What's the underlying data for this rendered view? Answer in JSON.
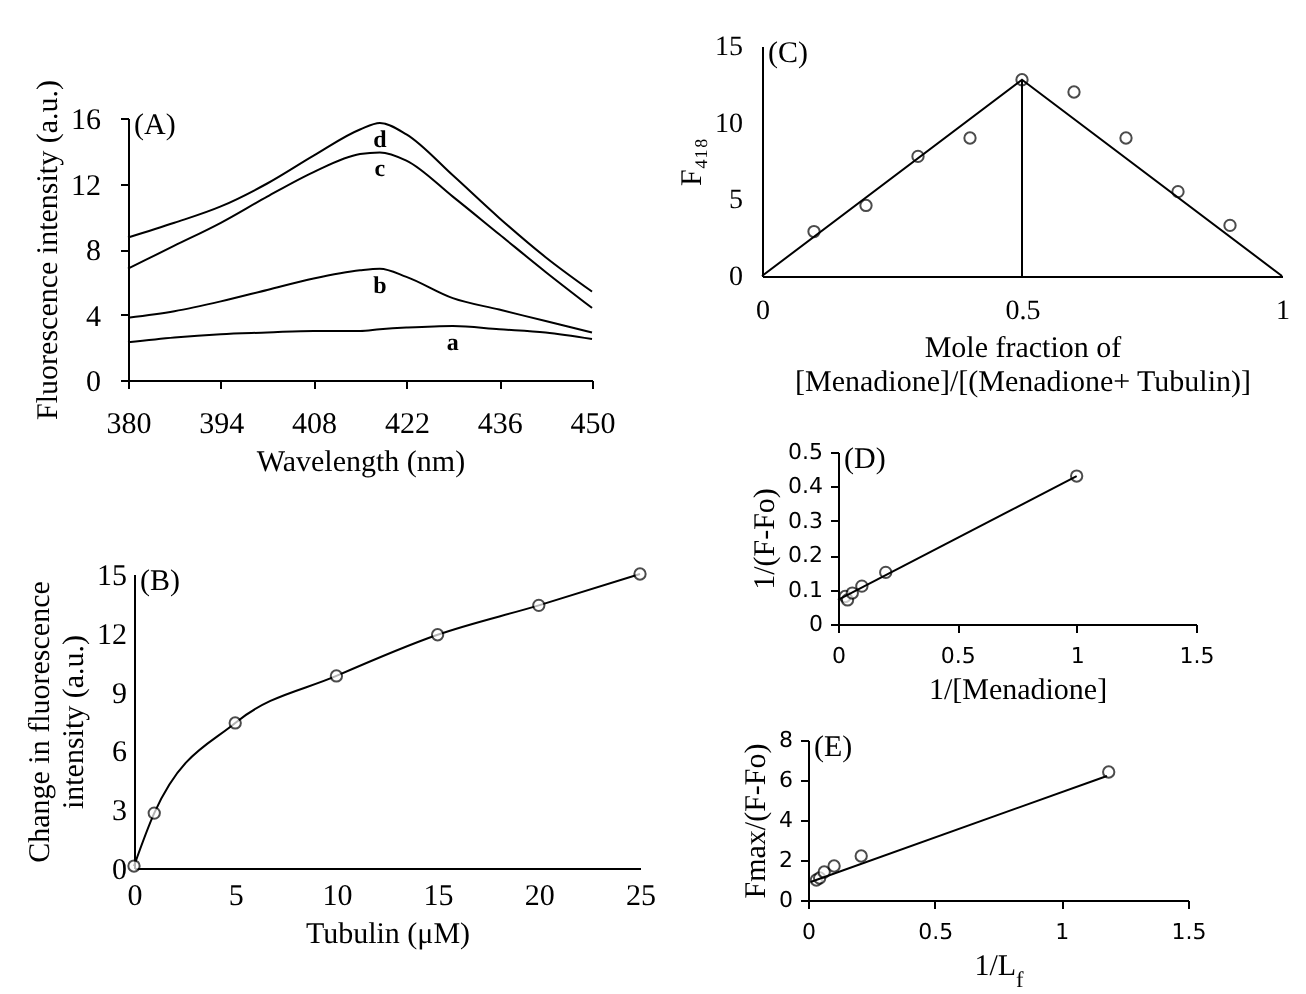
{
  "chart_data": [
    {
      "type": "line",
      "annotations": [
        "(A)"
      ],
      "xlabel": "Wavelength (nm)",
      "ylabel": "Fluorescence intensity (a.u.)",
      "x": [
        380,
        387,
        394,
        401,
        408,
        415,
        418,
        422,
        429,
        436,
        443,
        450
      ],
      "xlim": [
        380,
        450
      ],
      "xticks": [
        380,
        394,
        408,
        422,
        436,
        450
      ],
      "ylim": [
        0,
        16
      ],
      "yticks": [
        0,
        4,
        8,
        12,
        16
      ],
      "series": [
        {
          "name": "a",
          "color": "#000000",
          "values": [
            2.3,
            2.6,
            2.8,
            2.9,
            3.0,
            3.0,
            3.1,
            3.2,
            3.3,
            3.1,
            2.9,
            2.5
          ]
        },
        {
          "name": "b",
          "color": "#000000",
          "values": [
            3.8,
            4.2,
            4.8,
            5.5,
            6.2,
            6.7,
            6.8,
            6.3,
            5.0,
            4.3,
            3.6,
            2.9
          ]
        },
        {
          "name": "c",
          "color": "#000000",
          "values": [
            6.8,
            8.2,
            9.6,
            11.2,
            12.7,
            13.8,
            13.9,
            13.4,
            11.2,
            8.9,
            6.6,
            4.4
          ]
        },
        {
          "name": "d",
          "color": "#000000",
          "values": [
            8.7,
            9.6,
            10.6,
            12.0,
            13.7,
            15.3,
            15.7,
            15.0,
            12.5,
            9.9,
            7.5,
            5.4
          ]
        }
      ]
    },
    {
      "type": "line",
      "marker": "circle",
      "annotations": [
        "(B)"
      ],
      "xlabel": "Tubulin (μM)",
      "ylabel": "Change in fluorescence\nintensity (a.u.)",
      "x": [
        0,
        1,
        5,
        10,
        15,
        20,
        25
      ],
      "xlim": [
        0,
        25
      ],
      "xticks": [
        0,
        5,
        10,
        15,
        20,
        25
      ],
      "ylim": [
        0,
        15
      ],
      "yticks": [
        0,
        3,
        6,
        9,
        12,
        15
      ],
      "series": [
        {
          "color": "#000000",
          "values": [
            0.1,
            2.8,
            7.4,
            9.8,
            11.9,
            13.4,
            15.0
          ]
        }
      ]
    },
    {
      "type": "scatter",
      "marker": "circle",
      "annotations": [
        "(C)"
      ],
      "xlabel": "Mole fraction of\n[Menadione]/[(Menadione+ Tubulin)]",
      "ylabel": "F₄₁₈",
      "xlim": [
        0,
        1
      ],
      "xticks": [
        0,
        0.5,
        1
      ],
      "ylim": [
        0,
        15
      ],
      "yticks": [
        0,
        5,
        10,
        15
      ],
      "series": [
        {
          "color": "#000000",
          "x": [
            0.1,
            0.2,
            0.3,
            0.4,
            0.5,
            0.6,
            0.7,
            0.8,
            0.9
          ],
          "values": [
            2.9,
            4.6,
            7.8,
            9.0,
            12.8,
            12.0,
            9.0,
            5.5,
            3.3
          ]
        },
        {
          "type": "line",
          "marker": "none",
          "color": "#000000",
          "x": [
            0,
            0.5,
            0.5,
            0.5,
            1
          ],
          "values": [
            0,
            12.8,
            0,
            12.8,
            0
          ]
        }
      ]
    },
    {
      "type": "scatter",
      "marker": "circle",
      "annotations": [
        "(D)"
      ],
      "xlabel": "1/[Menadione]",
      "ylabel": "1/(F-Fo)",
      "xlim": [
        0,
        1.5
      ],
      "xticks": [
        0,
        0.5,
        1,
        1.5
      ],
      "ylim": [
        0,
        0.5
      ],
      "yticks": [
        0,
        0.1,
        0.2,
        0.3,
        0.4,
        0.5
      ],
      "series": [
        {
          "color": "#000000",
          "x": [
            0.03,
            0.04,
            0.06,
            0.1,
            0.2,
            1.0
          ],
          "values": [
            0.08,
            0.07,
            0.09,
            0.11,
            0.15,
            0.43
          ]
        },
        {
          "type": "line",
          "marker": "none",
          "color": "#000000",
          "x": [
            0,
            1
          ],
          "values": [
            0.07,
            0.43
          ]
        }
      ]
    },
    {
      "type": "scatter",
      "marker": "circle",
      "annotations": [
        "(E)"
      ],
      "xlabel": "1/L$_{f}$",
      "ylabel": "Fmax/(F-Fo)",
      "xlim": [
        0,
        1.5
      ],
      "xticks": [
        0,
        0.5,
        1,
        1.5
      ],
      "ylim": [
        0,
        8
      ],
      "yticks": [
        0,
        2,
        4,
        6,
        8
      ],
      "series": [
        {
          "color": "#000000",
          "x": [
            0.033,
            0.046,
            0.064,
            0.103,
            0.21,
            1.187
          ],
          "values": [
            1.0,
            1.1,
            1.4,
            1.7,
            2.2,
            6.4
          ]
        },
        {
          "type": "line",
          "marker": "none",
          "color": "#000000",
          "x": [
            0.01,
            1.18
          ],
          "values": [
            0.9,
            6.2
          ]
        }
      ]
    }
  ]
}
